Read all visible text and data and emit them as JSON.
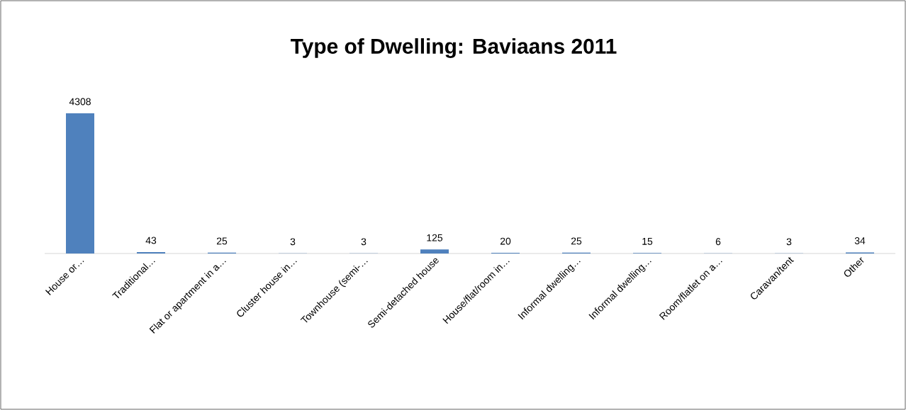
{
  "chart_data": {
    "type": "bar",
    "title": "Type of Dwelling:  Baviaans 2011",
    "categories": [
      "House or…",
      "Traditional…",
      "Flat or apartment in a…",
      "Cluster house in…",
      "Townhouse (semi-…",
      "Semi-detached house",
      "House/flat/room in…",
      "Informal dwelling…",
      "Informal dwelling…",
      "Room/flatlet on a…",
      "Caravan/tent",
      "Other"
    ],
    "values": [
      4308,
      43,
      25,
      3,
      3,
      125,
      20,
      25,
      15,
      6,
      3,
      34
    ],
    "color": "#4f81bd",
    "data_labels": true
  }
}
